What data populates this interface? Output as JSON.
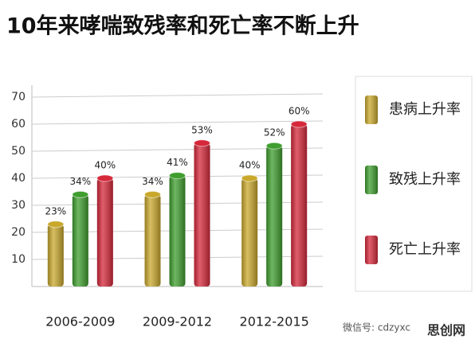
{
  "chart_data": {
    "type": "bar",
    "title": "10年来哮喘致残率和死亡率不断上升",
    "categories": [
      "2006-2009",
      "2009-2012",
      "2012-2015"
    ],
    "series": [
      {
        "name": "患病上升率",
        "color": "#c9a82c",
        "values": [
          23,
          34,
          40
        ],
        "value_labels": [
          "23%",
          "34%",
          "40%"
        ]
      },
      {
        "name": "致残上升率",
        "color": "#3f9e2e",
        "values": [
          34,
          41,
          52
        ],
        "value_labels": [
          "34%",
          "41%",
          "52%"
        ]
      },
      {
        "name": "死亡上升率",
        "color": "#d6283a",
        "values": [
          40,
          53,
          60
        ],
        "value_labels": [
          "40%",
          "53%",
          "60%"
        ]
      }
    ],
    "ylim": [
      0,
      70
    ],
    "yticks": [
      10,
      20,
      30,
      40,
      50,
      60,
      70
    ],
    "grid": true,
    "legend": "right",
    "watermark": "微信号: cdzyxc",
    "watermark_logo": "思创网"
  }
}
